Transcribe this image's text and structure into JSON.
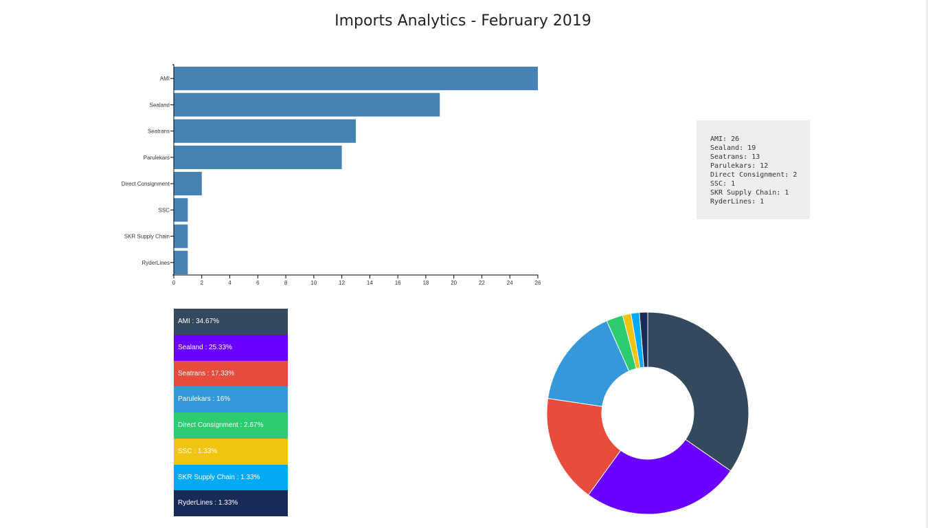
{
  "title": "Imports Analytics - February 2019",
  "colors": {
    "bar": "#4682b4",
    "axis": "#000000",
    "tooltip_bg": "#eeeeee",
    "series": [
      "#34495e",
      "#6a00ff",
      "#e74c3c",
      "#3498db",
      "#2ecc71",
      "#f1c40f",
      "#03a9f4",
      "#192a56"
    ]
  },
  "tooltip_lines": [
    "AMI: 26",
    "Sealand: 19",
    "Seatrans: 13",
    "Parulekars: 12",
    "Direct Consignment: 2",
    "SSC: 1",
    "SKR Supply Chain: 1",
    "RyderLines: 1"
  ],
  "legend": [
    "AMI : 34.67%",
    "Sealand : 25.33%",
    "Seatrans : 17.33%",
    "Parulekars : 16%",
    "Direct Consignment : 2.67%",
    "SSC : 1.33%",
    "SKR Supply Chain : 1.33%",
    "RyderLines : 1.33%"
  ],
  "chart_data": [
    {
      "type": "bar",
      "orientation": "horizontal",
      "categories": [
        "AMI",
        "Sealand",
        "Seatrans",
        "Parulekars",
        "Direct Consignment",
        "SSC",
        "SKR Supply Chain",
        "RyderLines"
      ],
      "values": [
        26,
        19,
        13,
        12,
        2,
        1,
        1,
        1
      ],
      "xlim": [
        0,
        26
      ],
      "xticks": [
        0,
        2,
        4,
        6,
        8,
        10,
        12,
        14,
        16,
        18,
        20,
        22,
        24,
        26
      ],
      "grid": false
    },
    {
      "type": "pie",
      "donut": true,
      "labels": [
        "AMI",
        "Sealand",
        "Seatrans",
        "Parulekars",
        "Direct Consignment",
        "SSC",
        "SKR Supply Chain",
        "RyderLines"
      ],
      "values": [
        26,
        19,
        13,
        12,
        2,
        1,
        1,
        1
      ],
      "percentages": [
        34.67,
        25.33,
        17.33,
        16,
        2.67,
        1.33,
        1.33,
        1.33
      ]
    }
  ]
}
